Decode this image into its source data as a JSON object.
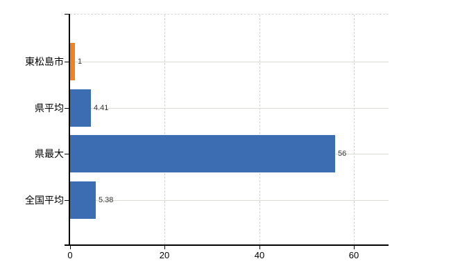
{
  "chart_data": {
    "type": "bar",
    "orientation": "horizontal",
    "title": "",
    "xlabel": "",
    "ylabel": "",
    "categories": [
      "東松島市",
      "県平均",
      "県最大",
      "全国平均"
    ],
    "values": [
      1,
      4.41,
      56,
      5.38
    ],
    "value_labels": [
      "1",
      "4.41",
      "56",
      "5.38"
    ],
    "bar_colors": [
      "#ee8227",
      "#3c6cb2",
      "#3c6cb2",
      "#3c6cb2"
    ],
    "x_ticks": [
      0,
      20,
      40,
      60
    ],
    "x_tick_labels": [
      "0",
      "20",
      "40",
      "60"
    ],
    "xlim": [
      0,
      67.3
    ],
    "grid": true,
    "legend": false
  },
  "style": {
    "background": "#ffffff",
    "axis_color": "#000000",
    "hgrid_color": "#d9ded6",
    "vgrid_color": "#d4d4d4",
    "top_border_color": "#d9d9d9",
    "category_label_color": "#000000",
    "value_label_color": "#333333"
  }
}
